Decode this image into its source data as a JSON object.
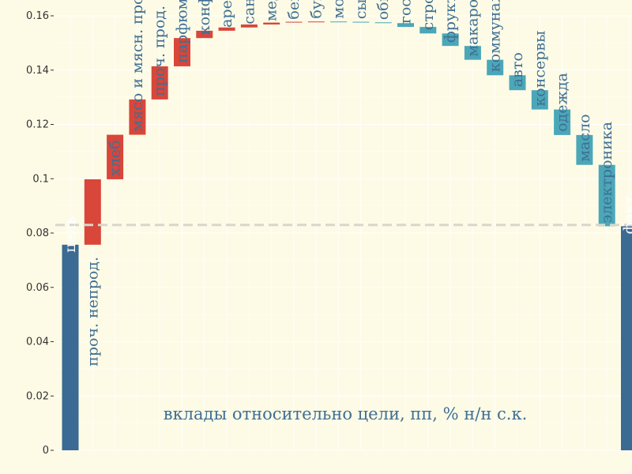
{
  "chart_data": {
    "type": "bar",
    "subtype": "waterfall",
    "title": "",
    "xlabel": "",
    "ylabel": "",
    "ylim": [
      0,
      0.16
    ],
    "yticks": [
      0,
      0.02,
      0.04,
      0.06,
      0.08,
      0.1,
      0.12,
      0.14,
      0.16
    ],
    "ytick_labels": [
      "0",
      "0.02",
      "0.04",
      "0.06",
      "0.08",
      "0.1",
      "0.12",
      "0.14",
      "0.16"
    ],
    "grid": true,
    "reference_line": 0.083,
    "annotation": "вклады относительно цели, пп, % н/н с.к.",
    "colors": {
      "total": "#3b6a92",
      "increase": "#d9463a",
      "decrease": "#4ba7b8",
      "reference": "#d7d7cc",
      "grid": "#ffffff",
      "label_total": "#ffffff",
      "label_other": "#3f6f93"
    },
    "bars": [
      {
        "category": "цель",
        "kind": "total",
        "start": 0,
        "end": 0.0757
      },
      {
        "category": "проч. непрод.",
        "kind": "increase",
        "start": 0.0757,
        "end": 0.0998
      },
      {
        "category": "хлеб",
        "kind": "increase",
        "start": 0.0998,
        "end": 0.1162
      },
      {
        "category": "мясо и мясн. продукты",
        "kind": "increase",
        "start": 0.1162,
        "end": 0.1292
      },
      {
        "category": "проч. прод.",
        "kind": "increase",
        "start": 0.1292,
        "end": 0.1414
      },
      {
        "category": "парфюмерия и косм.",
        "kind": "increase",
        "start": 0.1414,
        "end": 0.1518
      },
      {
        "category": "конфеты",
        "kind": "increase",
        "start": 0.1518,
        "end": 0.1545
      },
      {
        "category": "аренда мун. помещений",
        "kind": "increase",
        "start": 0.1545,
        "end": 0.1557
      },
      {
        "category": "санаторно-озд. услуги",
        "kind": "increase",
        "start": 0.1557,
        "end": 0.1568
      },
      {
        "category": "медикаменты",
        "kind": "increase",
        "start": 0.1568,
        "end": 0.1575
      },
      {
        "category": "бензин",
        "kind": "increase",
        "start": 0.1575,
        "end": 0.1578
      },
      {
        "category": "бум. изделия",
        "kind": "increase",
        "start": 0.1578,
        "end": 0.1579
      },
      {
        "category": "молочные продукты",
        "kind": "decrease",
        "start": 0.1579,
        "end": 0.1578
      },
      {
        "category": "сыр",
        "kind": "decrease",
        "start": 0.1578,
        "end": 0.1576
      },
      {
        "category": "общес. транспорт",
        "kind": "decrease",
        "start": 0.1576,
        "end": 0.1573
      },
      {
        "category": "гостиницы",
        "kind": "decrease",
        "start": 0.1573,
        "end": 0.1559
      },
      {
        "category": "стройматериалы",
        "kind": "decrease",
        "start": 0.1559,
        "end": 0.1535
      },
      {
        "category": "фрукты и овощи",
        "kind": "decrease",
        "start": 0.1535,
        "end": 0.1489
      },
      {
        "category": "макароны и крупы",
        "kind": "decrease",
        "start": 0.1489,
        "end": 0.1438
      },
      {
        "category": "коммунальные услуги",
        "kind": "decrease",
        "start": 0.1438,
        "end": 0.1381
      },
      {
        "category": "авто",
        "kind": "decrease",
        "start": 0.1381,
        "end": 0.1326
      },
      {
        "category": "консервы",
        "kind": "decrease",
        "start": 0.1326,
        "end": 0.1255
      },
      {
        "category": "одежда",
        "kind": "decrease",
        "start": 0.1255,
        "end": 0.1161
      },
      {
        "category": "масло",
        "kind": "decrease",
        "start": 0.1161,
        "end": 0.1051
      },
      {
        "category": "электроника",
        "kind": "decrease",
        "start": 0.1051,
        "end": 0.0825
      },
      {
        "category": "факт",
        "kind": "total",
        "start": 0,
        "end": 0.0825
      }
    ]
  }
}
